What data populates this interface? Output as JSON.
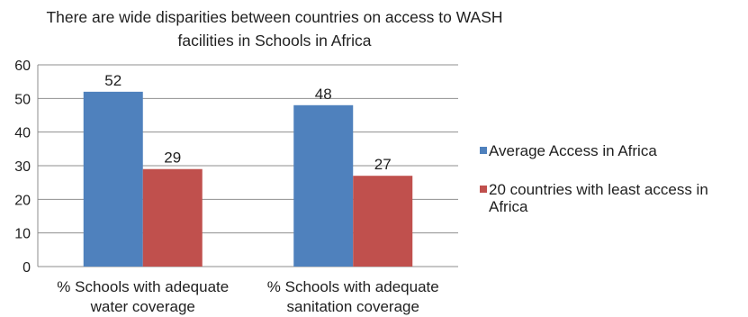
{
  "chart_data": {
    "type": "bar",
    "title": "There are wide disparities between countries on access to WASH facilities in Schools in Africa",
    "categories": [
      [
        "% Schools with adequate",
        "water coverage"
      ],
      [
        "% Schools with adequate",
        "sanitation coverage"
      ]
    ],
    "series": [
      {
        "name": "Average Access in Africa",
        "values": [
          52,
          48
        ],
        "color": "#4f81bd"
      },
      {
        "name": "20 countries with least access in Africa",
        "values": [
          29,
          27
        ],
        "color": "#c0504d"
      }
    ],
    "ylim": [
      0,
      60
    ],
    "yticks": [
      0,
      10,
      20,
      30,
      40,
      50,
      60
    ],
    "grid": true,
    "legend_position": "right",
    "data_labels": true
  }
}
